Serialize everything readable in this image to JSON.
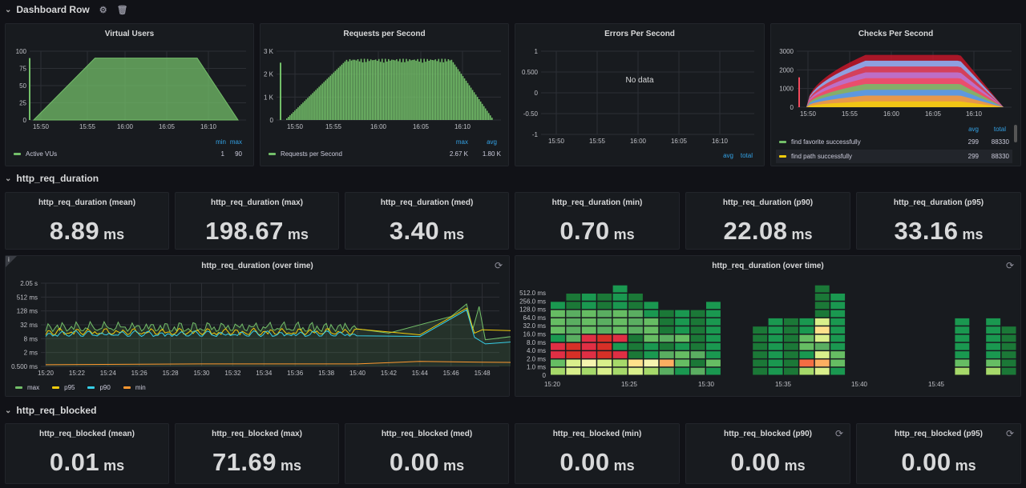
{
  "rows": {
    "dashboard": {
      "title": "Dashboard Row"
    },
    "duration": {
      "title": "http_req_duration"
    },
    "blocked": {
      "title": "http_req_blocked"
    }
  },
  "icons": {
    "settings": "gear-icon",
    "delete": "trash-icon",
    "refresh": "refresh-icon",
    "info": "info-icon",
    "chevron": "chevron-down-icon"
  },
  "colors": {
    "green": "#73bf69",
    "yellow": "#f2cc0c",
    "blue": "#5794f2",
    "cyan": "#37cfe8",
    "orange": "#ff9830",
    "red": "#f2495c",
    "link": "#33a2e5"
  },
  "vus": {
    "title": "Virtual Users",
    "legend_series": "Active VUs",
    "headers": [
      "min",
      "max"
    ],
    "values": [
      "1",
      "90"
    ]
  },
  "rps": {
    "title": "Requests per Second",
    "legend_series": "Requests per Second",
    "headers": [
      "max",
      "avg"
    ],
    "values": [
      "2.67 K",
      "1.80 K"
    ]
  },
  "errors": {
    "title": "Errors Per Second",
    "nodata": "No data",
    "headers": [
      "avg",
      "total"
    ]
  },
  "checks": {
    "title": "Checks Per Second",
    "headers": [
      "avg",
      "total"
    ],
    "rows": [
      {
        "name": "find favorite successfully",
        "avg": "299",
        "total": "88330",
        "color": "#73bf69"
      },
      {
        "name": "find path successfully",
        "avg": "299",
        "total": "88330",
        "color": "#f2cc0c"
      }
    ]
  },
  "duration_stats": [
    {
      "title": "http_req_duration (mean)",
      "value": "8.89",
      "unit": "ms"
    },
    {
      "title": "http_req_duration (max)",
      "value": "198.67",
      "unit": "ms"
    },
    {
      "title": "http_req_duration (med)",
      "value": "3.40",
      "unit": "ms"
    },
    {
      "title": "http_req_duration (min)",
      "value": "0.70",
      "unit": "ms"
    },
    {
      "title": "http_req_duration (p90)",
      "value": "22.08",
      "unit": "ms"
    },
    {
      "title": "http_req_duration (p95)",
      "value": "33.16",
      "unit": "ms"
    }
  ],
  "duration_graph": {
    "title": "http_req_duration (over time)",
    "legend": [
      {
        "name": "max",
        "color": "#73bf69"
      },
      {
        "name": "p95",
        "color": "#f2cc0c"
      },
      {
        "name": "p90",
        "color": "#37cfe8"
      },
      {
        "name": "min",
        "color": "#ff9830"
      }
    ]
  },
  "duration_heatmap": {
    "title": "http_req_duration (over time)"
  },
  "blocked_stats": [
    {
      "title": "http_req_blocked (mean)",
      "value": "0.01",
      "unit": "ms"
    },
    {
      "title": "http_req_blocked (max)",
      "value": "71.69",
      "unit": "ms"
    },
    {
      "title": "http_req_blocked (med)",
      "value": "0.00",
      "unit": "ms"
    },
    {
      "title": "http_req_blocked (min)",
      "value": "0.00",
      "unit": "ms"
    },
    {
      "title": "http_req_blocked (p90)",
      "value": "0.00",
      "unit": "ms"
    },
    {
      "title": "http_req_blocked (p95)",
      "value": "0.00",
      "unit": "ms"
    }
  ],
  "chart_data": [
    {
      "type": "area",
      "title": "Virtual Users",
      "x": [
        "15:50",
        "15:55",
        "16:00",
        "16:05",
        "16:10"
      ],
      "ylim": [
        0,
        100
      ],
      "yticks": [
        "100",
        "75",
        "50",
        "25",
        "0"
      ],
      "series": [
        {
          "name": "Active VUs",
          "min": 1,
          "max": 90,
          "shape": [
            [
              0,
              0
            ],
            [
              0.3,
              90
            ],
            [
              0.8,
              90
            ],
            [
              1.0,
              0
            ]
          ]
        }
      ]
    },
    {
      "type": "bar",
      "title": "Requests per Second",
      "x": [
        "15:50",
        "15:55",
        "16:00",
        "16:05",
        "16:10"
      ],
      "ylim": [
        0,
        3000
      ],
      "yticks": [
        "3 K",
        "2 K",
        "1 K",
        "0"
      ],
      "series": [
        {
          "name": "Requests per Second",
          "max": 2670,
          "avg": 1800
        }
      ]
    },
    {
      "type": "line",
      "title": "Errors Per Second",
      "x": [
        "15:50",
        "15:55",
        "16:00",
        "16:05",
        "16:10"
      ],
      "ylim": [
        -1,
        1
      ],
      "yticks": [
        "1",
        "0.500",
        "0",
        "-0.50",
        "-1"
      ],
      "series": []
    },
    {
      "type": "area",
      "title": "Checks Per Second",
      "x": [
        "15:50",
        "15:55",
        "16:00",
        "16:05",
        "16:10"
      ],
      "ylim": [
        0,
        3000
      ],
      "yticks": [
        "3000",
        "2000",
        "1000",
        "0"
      ],
      "series": [
        {
          "name": "find favorite successfully",
          "avg": 299,
          "total": 88330
        },
        {
          "name": "find path successfully",
          "avg": 299,
          "total": 88330
        }
      ]
    },
    {
      "type": "line",
      "title": "http_req_duration (over time)",
      "x": [
        "15:20",
        "15:22",
        "15:24",
        "15:26",
        "15:28",
        "15:30",
        "15:32",
        "15:34",
        "15:36",
        "15:38",
        "15:40",
        "15:42",
        "15:44",
        "15:46",
        "15:48"
      ],
      "yscale": "log",
      "yticks": [
        "2.05 s",
        "512 ms",
        "128 ms",
        "32 ms",
        "8 ms",
        "2 ms",
        "0.500 ms"
      ],
      "series": [
        {
          "name": "max"
        },
        {
          "name": "p95"
        },
        {
          "name": "p90"
        },
        {
          "name": "min"
        }
      ]
    },
    {
      "type": "heatmap",
      "title": "http_req_duration (over time)",
      "x": [
        "15:20",
        "15:25",
        "15:30",
        "15:35",
        "15:40",
        "15:45"
      ],
      "y": [
        "0",
        "1.0 ms",
        "2.0 ms",
        "4.0 ms",
        "8.0 ms",
        "16.0 ms",
        "32.0 ms",
        "64.0 ms",
        "128.0 ms",
        "256.0 ms",
        "512.0 ms"
      ],
      "columns": [
        {
          "col": 0,
          "cells": [
            4,
            3,
            1,
            1,
            2,
            3,
            3,
            3,
            2
          ]
        },
        {
          "col": 1,
          "cells": [
            4,
            4,
            1,
            1,
            3,
            3,
            3,
            3,
            2,
            2
          ]
        },
        {
          "col": 2,
          "cells": [
            4,
            5,
            1,
            1,
            1,
            3,
            3,
            3,
            2,
            2
          ]
        },
        {
          "col": 3,
          "cells": [
            4,
            4,
            1,
            1,
            1,
            3,
            3,
            3,
            2,
            2
          ]
        },
        {
          "col": 4,
          "cells": [
            4,
            4,
            1,
            2,
            1,
            3,
            3,
            3,
            2,
            2,
            2
          ]
        },
        {
          "col": 5,
          "cells": [
            4,
            5,
            2,
            2,
            2,
            3,
            3,
            3,
            2,
            2
          ]
        },
        {
          "col": 6,
          "cells": [
            4,
            5,
            2,
            2,
            3,
            3,
            3,
            2,
            2
          ]
        },
        {
          "col": 7,
          "cells": [
            3,
            6,
            3,
            2,
            3,
            2,
            2,
            2
          ]
        },
        {
          "col": 8,
          "cells": [
            2,
            3,
            3,
            2,
            3,
            2,
            2,
            2
          ]
        },
        {
          "col": 9,
          "cells": [
            3,
            2,
            3,
            2,
            2,
            2,
            2,
            2
          ]
        },
        {
          "col": 10,
          "cells": [
            2,
            3,
            2,
            2,
            2,
            2,
            2,
            2,
            2
          ]
        },
        {
          "col": 13,
          "cells": [
            2,
            2,
            2,
            2,
            2,
            2
          ]
        },
        {
          "col": 14,
          "cells": [
            2,
            2,
            2,
            2,
            2,
            2,
            2
          ]
        },
        {
          "col": 15,
          "cells": [
            2,
            2,
            2,
            2,
            2,
            2,
            2
          ]
        },
        {
          "col": 16,
          "cells": [
            4,
            6,
            2,
            3,
            3,
            2,
            2
          ]
        },
        {
          "col": 17,
          "cells": [
            4,
            6,
            4,
            3,
            4,
            5,
            4,
            2,
            2,
            2,
            2
          ]
        },
        {
          "col": 18,
          "cells": [
            2,
            3,
            3,
            2,
            2,
            2,
            2,
            2,
            2,
            2
          ]
        },
        {
          "col": 26,
          "cells": [
            4,
            3,
            2,
            2,
            2,
            2,
            2
          ]
        },
        {
          "col": 28,
          "cells": [
            4,
            3,
            2,
            2,
            2,
            2,
            2
          ]
        },
        {
          "col": 29,
          "cells": [
            2,
            2,
            2,
            2,
            2,
            2
          ]
        }
      ]
    }
  ]
}
